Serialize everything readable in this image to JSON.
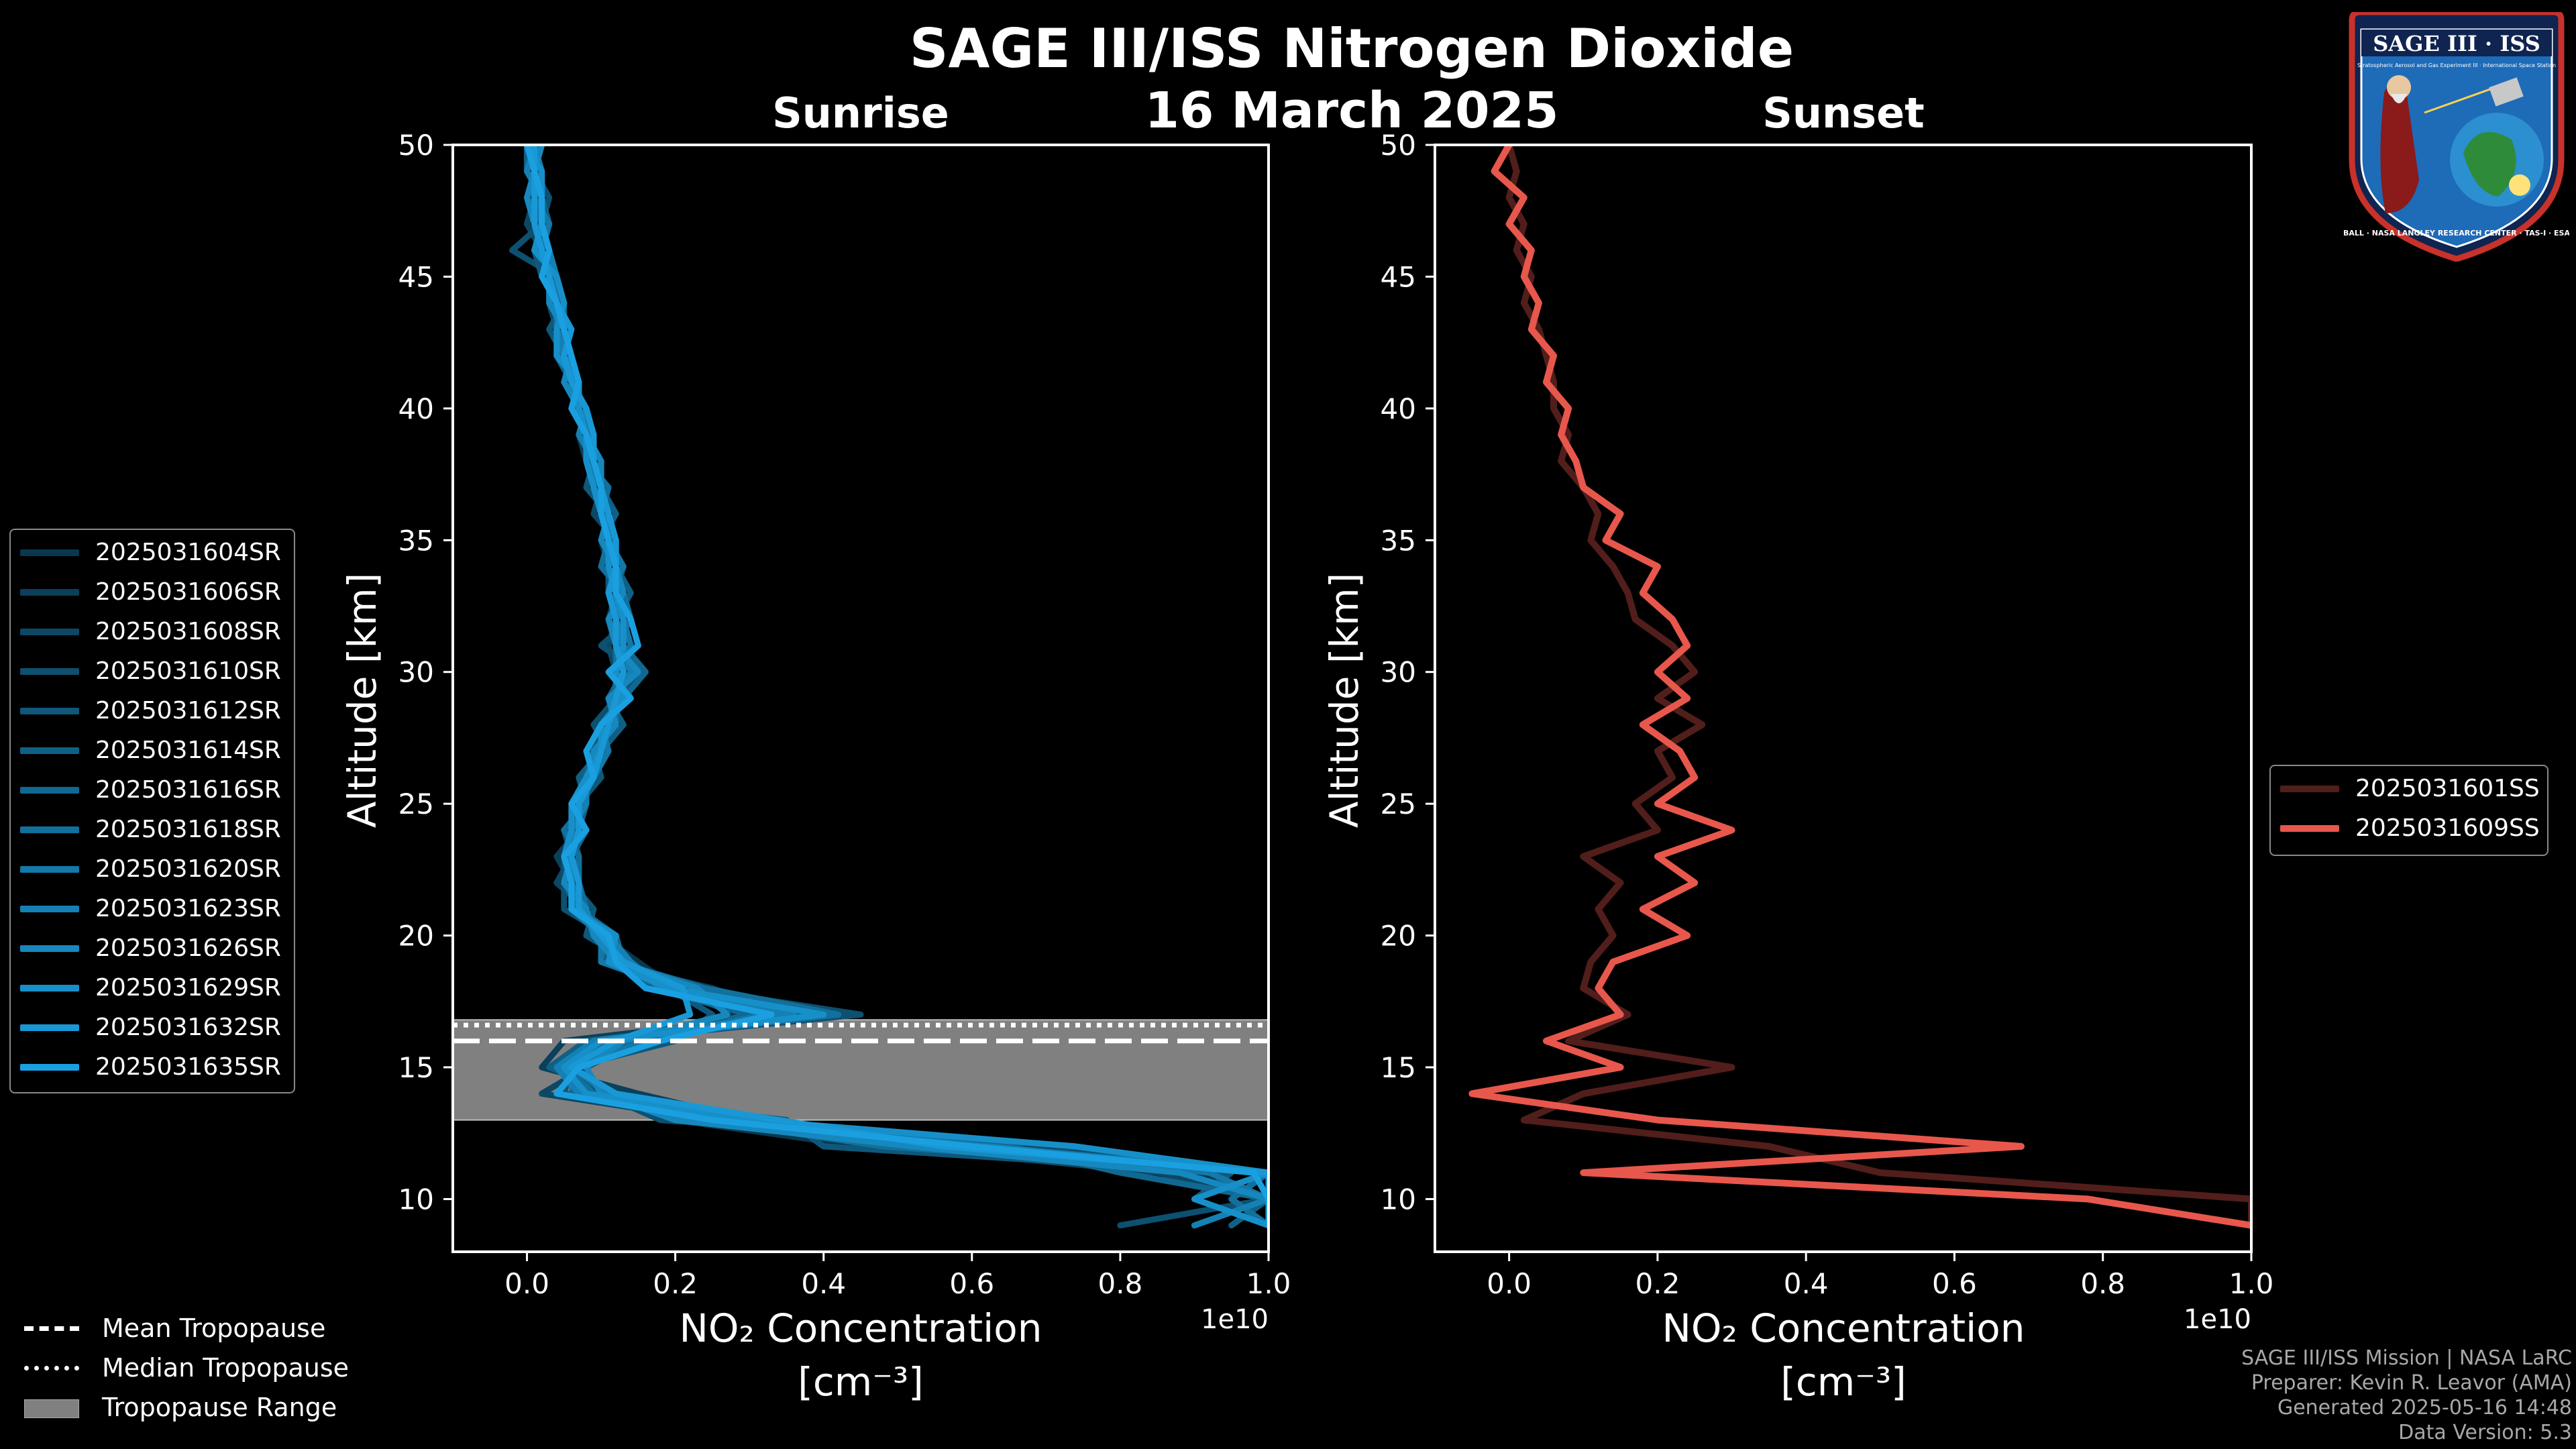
{
  "figure": {
    "title": "SAGE III/ISS Nitrogen Dioxide",
    "date": "16 March 2025"
  },
  "logo": {
    "text": "SAGE III · ISS",
    "subtitle": "Stratospheric Aerosol and Gas Experiment III · International Space Station",
    "ring_text": "BALL · NASA LANGLEY RESEARCH CENTER · TAS-I · ESA"
  },
  "footer": {
    "line1": "SAGE III/ISS Mission | NASA LaRC",
    "line2": "Preparer: Kevin R. Leavor (AMA)",
    "line3": "Generated 2025-05-16 14:48",
    "line4": "Data Version: 5.3"
  },
  "bottom_legend": {
    "mean": "Mean Tropopause",
    "median": "Median Tropopause",
    "range": "Tropopause Range"
  },
  "colors": {
    "sunrise_line": "#1aa0e0",
    "sunset_line": "#e8574c",
    "tropopause_fill": "#808080"
  },
  "chart_data": [
    {
      "type": "line",
      "title": "Sunrise",
      "xlabel": "NO₂ Concentration",
      "xlabel_unit": "[cm⁻³]",
      "ylabel": "Altitude [km]",
      "offset_text": "1e10",
      "xlim": [
        -0.1,
        1.0
      ],
      "ylim": [
        8,
        50
      ],
      "xticks": [
        "0.0",
        "0.2",
        "0.4",
        "0.6",
        "0.8",
        "1.0"
      ],
      "yticks": [
        "10",
        "15",
        "20",
        "25",
        "30",
        "35",
        "40",
        "45",
        "50"
      ],
      "tropopause": {
        "mean": 16.0,
        "median": 16.6,
        "range": [
          13.0,
          16.8
        ]
      },
      "altitudes": [
        50,
        49,
        48,
        47,
        46,
        45,
        44,
        43,
        42,
        41,
        40,
        39,
        38,
        37,
        36,
        35,
        34,
        33,
        32,
        31,
        30,
        29,
        28,
        27,
        26,
        25,
        24,
        23,
        22,
        21,
        20,
        19,
        18,
        17,
        16,
        15,
        14,
        13,
        12,
        11,
        10,
        9
      ],
      "series": [
        {
          "name": "2025031604SR",
          "values": [
            0.0,
            0.02,
            0.0,
            0.03,
            0.02,
            0.04,
            0.05,
            0.04,
            0.06,
            0.07,
            0.07,
            0.08,
            0.09,
            0.1,
            0.1,
            0.11,
            0.12,
            0.11,
            0.13,
            0.12,
            0.13,
            0.12,
            0.1,
            0.09,
            0.08,
            0.07,
            0.06,
            0.05,
            0.05,
            0.07,
            0.1,
            0.15,
            0.2,
            0.28,
            0.12,
            0.05,
            0.08,
            0.2,
            0.45,
            0.9,
            1.0,
            1.0
          ]
        },
        {
          "name": "2025031606SR",
          "values": [
            0.01,
            0.0,
            0.02,
            0.01,
            0.03,
            0.03,
            0.04,
            0.05,
            0.05,
            0.06,
            0.08,
            0.07,
            0.08,
            0.09,
            0.11,
            0.1,
            0.11,
            0.12,
            0.11,
            0.13,
            0.14,
            0.11,
            0.12,
            0.08,
            0.09,
            0.06,
            0.07,
            0.04,
            0.06,
            0.06,
            0.12,
            0.1,
            0.25,
            0.35,
            0.05,
            0.02,
            0.15,
            0.3,
            0.6,
            1.0,
            0.95,
            1.0
          ]
        },
        {
          "name": "2025031608SR",
          "values": [
            0.02,
            0.01,
            0.01,
            0.0,
            0.02,
            0.03,
            0.03,
            0.04,
            0.06,
            0.05,
            0.07,
            0.09,
            0.08,
            0.1,
            0.09,
            0.12,
            0.1,
            0.13,
            0.12,
            0.11,
            0.12,
            0.13,
            0.11,
            0.1,
            0.07,
            0.08,
            0.05,
            0.06,
            0.04,
            0.08,
            0.09,
            0.13,
            0.18,
            0.3,
            0.15,
            0.08,
            0.02,
            0.25,
            0.5,
            0.85,
            1.0,
            0.9
          ]
        },
        {
          "name": "2025031610SR",
          "values": [
            0.0,
            0.01,
            0.03,
            0.02,
            -0.02,
            0.04,
            0.04,
            0.05,
            0.04,
            0.07,
            0.06,
            0.08,
            0.1,
            0.09,
            0.1,
            0.11,
            0.13,
            0.12,
            0.14,
            0.1,
            0.15,
            0.12,
            0.09,
            0.11,
            0.08,
            0.06,
            0.08,
            0.05,
            0.05,
            0.05,
            0.11,
            0.12,
            0.22,
            0.45,
            0.1,
            0.04,
            0.1,
            0.18,
            0.7,
            1.0,
            1.0,
            0.8
          ]
        },
        {
          "name": "2025031612SR",
          "values": [
            0.01,
            0.02,
            0.0,
            0.02,
            0.01,
            0.02,
            0.05,
            0.03,
            0.05,
            0.06,
            0.08,
            0.07,
            0.09,
            0.08,
            0.11,
            0.12,
            0.11,
            0.11,
            0.13,
            0.14,
            0.12,
            0.14,
            0.1,
            0.09,
            0.1,
            0.07,
            0.06,
            0.07,
            0.06,
            0.09,
            0.08,
            0.14,
            0.19,
            0.25,
            0.2,
            0.06,
            0.05,
            0.35,
            0.4,
            0.95,
            0.9,
            1.0
          ]
        },
        {
          "name": "2025031614SR",
          "values": [
            0.0,
            0.0,
            0.02,
            0.03,
            0.01,
            0.04,
            0.03,
            0.06,
            0.05,
            0.07,
            0.07,
            0.09,
            0.08,
            0.1,
            0.12,
            0.1,
            0.12,
            0.14,
            0.12,
            0.12,
            0.13,
            0.11,
            0.13,
            0.1,
            0.07,
            0.08,
            0.07,
            0.05,
            0.07,
            0.06,
            0.1,
            0.11,
            0.21,
            0.38,
            0.08,
            0.03,
            0.12,
            0.22,
            0.55,
            1.0,
            1.0,
            0.95
          ]
        },
        {
          "name": "2025031616SR",
          "values": [
            0.02,
            0.01,
            0.01,
            0.02,
            0.03,
            0.03,
            0.05,
            0.05,
            0.04,
            0.06,
            0.08,
            0.08,
            0.1,
            0.09,
            0.1,
            0.12,
            0.12,
            0.12,
            0.12,
            0.13,
            0.16,
            0.13,
            0.11,
            0.1,
            0.09,
            0.06,
            0.08,
            0.06,
            0.05,
            0.07,
            0.12,
            0.13,
            0.17,
            0.3,
            0.14,
            0.07,
            0.06,
            0.28,
            0.65,
            0.8,
            1.0,
            1.0
          ]
        },
        {
          "name": "2025031618SR",
          "values": [
            0.01,
            0.02,
            0.02,
            0.01,
            0.02,
            0.04,
            0.04,
            0.04,
            0.06,
            0.06,
            0.07,
            0.08,
            0.08,
            0.11,
            0.1,
            0.11,
            0.1,
            0.13,
            0.14,
            0.12,
            0.12,
            0.12,
            0.12,
            0.09,
            0.08,
            0.08,
            0.05,
            0.07,
            0.07,
            0.08,
            0.09,
            0.12,
            0.24,
            0.42,
            0.11,
            0.05,
            0.09,
            0.24,
            0.48,
            1.0,
            0.95,
            1.0
          ]
        },
        {
          "name": "2025031620SR",
          "values": [
            0.0,
            0.01,
            0.01,
            0.03,
            0.02,
            0.03,
            0.04,
            0.05,
            0.05,
            0.07,
            0.06,
            0.09,
            0.09,
            0.09,
            0.11,
            0.11,
            0.13,
            0.11,
            0.13,
            0.14,
            0.13,
            0.13,
            0.1,
            0.11,
            0.09,
            0.07,
            0.07,
            0.05,
            0.06,
            0.06,
            0.1,
            0.1,
            0.2,
            0.32,
            0.16,
            0.06,
            0.11,
            0.32,
            0.58,
            0.92,
            1.0,
            1.0
          ]
        },
        {
          "name": "2025031623SR",
          "values": [
            0.01,
            0.0,
            0.02,
            0.02,
            0.03,
            0.04,
            0.05,
            0.04,
            0.05,
            0.06,
            0.08,
            0.07,
            0.09,
            0.1,
            0.1,
            0.12,
            0.11,
            0.12,
            0.12,
            0.13,
            0.14,
            0.12,
            0.11,
            0.1,
            0.08,
            0.08,
            0.06,
            0.06,
            0.06,
            0.07,
            0.11,
            0.14,
            0.18,
            0.36,
            0.09,
            0.04,
            0.07,
            0.26,
            0.62,
            1.0,
            1.0,
            0.9
          ]
        },
        {
          "name": "2025031626SR",
          "values": [
            0.02,
            0.01,
            0.0,
            0.01,
            0.02,
            0.03,
            0.03,
            0.05,
            0.06,
            0.05,
            0.07,
            0.08,
            0.1,
            0.1,
            0.11,
            0.1,
            0.12,
            0.13,
            0.11,
            0.12,
            0.15,
            0.11,
            0.12,
            0.09,
            0.09,
            0.07,
            0.07,
            0.06,
            0.05,
            0.08,
            0.09,
            0.12,
            0.23,
            0.27,
            0.13,
            0.08,
            0.1,
            0.2,
            0.52,
            0.88,
            1.0,
            1.0
          ]
        },
        {
          "name": "2025031629SR",
          "values": [
            0.0,
            0.02,
            0.02,
            0.02,
            0.01,
            0.04,
            0.05,
            0.04,
            0.04,
            0.07,
            0.07,
            0.08,
            0.08,
            0.09,
            0.1,
            0.11,
            0.11,
            0.12,
            0.13,
            0.13,
            0.12,
            0.13,
            0.1,
            0.1,
            0.08,
            0.06,
            0.06,
            0.05,
            0.06,
            0.06,
            0.12,
            0.11,
            0.19,
            0.4,
            0.1,
            0.05,
            0.08,
            0.3,
            0.74,
            1.0,
            0.9,
            1.0
          ]
        },
        {
          "name": "2025031632SR",
          "values": [
            0.01,
            0.01,
            0.01,
            0.01,
            0.02,
            0.03,
            0.04,
            0.06,
            0.05,
            0.06,
            0.08,
            0.09,
            0.09,
            0.1,
            0.11,
            0.12,
            0.12,
            0.11,
            0.12,
            0.12,
            0.13,
            0.12,
            0.11,
            0.1,
            0.09,
            0.07,
            0.07,
            0.06,
            0.07,
            0.07,
            0.1,
            0.13,
            0.21,
            0.22,
            0.12,
            0.06,
            0.12,
            0.34,
            0.56,
            1.0,
            1.0,
            1.0
          ]
        },
        {
          "name": "2025031635SR",
          "values": [
            0.0,
            0.01,
            0.02,
            0.02,
            0.03,
            0.02,
            0.04,
            0.05,
            0.06,
            0.07,
            0.06,
            0.08,
            0.09,
            0.1,
            0.1,
            0.11,
            0.12,
            0.12,
            0.14,
            0.15,
            0.11,
            0.14,
            0.1,
            0.08,
            0.09,
            0.06,
            0.08,
            0.05,
            0.06,
            0.06,
            0.11,
            0.12,
            0.16,
            0.33,
            0.18,
            0.07,
            0.04,
            0.25,
            0.6,
            0.98,
            1.0,
            1.0
          ]
        }
      ]
    },
    {
      "type": "line",
      "title": "Sunset",
      "xlabel": "NO₂ Concentration",
      "xlabel_unit": "[cm⁻³]",
      "ylabel": "Altitude [km]",
      "offset_text": "1e10",
      "xlim": [
        -0.1,
        1.0
      ],
      "ylim": [
        8,
        50
      ],
      "xticks": [
        "0.0",
        "0.2",
        "0.4",
        "0.6",
        "0.8",
        "1.0"
      ],
      "yticks": [
        "10",
        "15",
        "20",
        "25",
        "30",
        "35",
        "40",
        "45",
        "50"
      ],
      "altitudes": [
        50,
        49,
        48,
        47,
        46,
        45,
        44,
        43,
        42,
        41,
        40,
        39,
        38,
        37,
        36,
        35,
        34,
        33,
        32,
        31,
        30,
        29,
        28,
        27,
        26,
        25,
        24,
        23,
        22,
        21,
        20,
        19,
        18,
        17,
        16,
        15,
        14,
        13,
        12,
        11,
        10,
        9
      ],
      "series": [
        {
          "name": "2025031601SS",
          "values": [
            0.0,
            0.01,
            0.0,
            0.02,
            0.01,
            0.03,
            0.02,
            0.04,
            0.05,
            0.06,
            0.06,
            0.08,
            0.07,
            0.1,
            0.12,
            0.11,
            0.14,
            0.16,
            0.17,
            0.22,
            0.25,
            0.2,
            0.26,
            0.2,
            0.22,
            0.17,
            0.2,
            0.1,
            0.15,
            0.12,
            0.14,
            0.11,
            0.1,
            0.16,
            0.08,
            0.3,
            0.1,
            0.02,
            0.35,
            0.5,
            1.0,
            1.0
          ]
        },
        {
          "name": "2025031609SS",
          "values": [
            0.0,
            -0.02,
            0.02,
            0.0,
            0.03,
            0.02,
            0.04,
            0.03,
            0.06,
            0.05,
            0.08,
            0.07,
            0.09,
            0.1,
            0.15,
            0.13,
            0.2,
            0.18,
            0.22,
            0.24,
            0.2,
            0.24,
            0.18,
            0.23,
            0.25,
            0.2,
            0.3,
            0.2,
            0.25,
            0.18,
            0.24,
            0.14,
            0.12,
            0.15,
            0.05,
            0.15,
            -0.05,
            0.2,
            0.69,
            0.1,
            0.78,
            1.0
          ]
        }
      ]
    }
  ]
}
